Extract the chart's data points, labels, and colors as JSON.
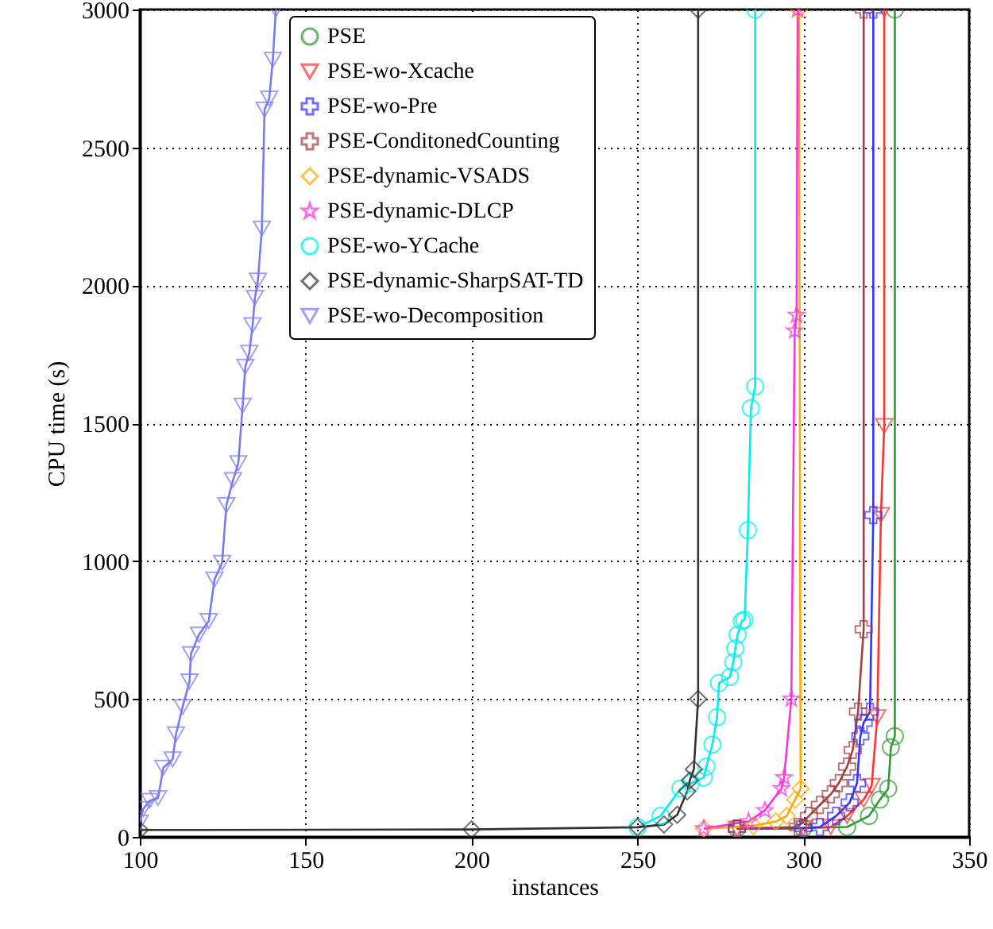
{
  "chart_data": {
    "type": "line",
    "xlabel": "instances",
    "ylabel": "CPU time (s)",
    "xlim": [
      100,
      350
    ],
    "xticks": [
      100,
      150,
      200,
      250,
      300,
      350
    ],
    "ylim": [
      0,
      3000
    ],
    "yticks": [
      0,
      500,
      1000,
      1500,
      2000,
      2500,
      3000
    ],
    "grid": true,
    "legend": "top",
    "line_style": "solid",
    "series": [
      {
        "name": "PSE",
        "color": "#339933",
        "marker": "circle",
        "x": [
          280,
          300,
          313.2,
          319.8,
          323.1,
          325.6,
          326.4,
          327.6,
          327.6
        ],
        "values": [
          30,
          32,
          36,
          76,
          135,
          175,
          325,
          365,
          3000
        ]
      },
      {
        "name": "PSE-wo-Xcache",
        "color": "#ff3333",
        "marker": "triangle",
        "x": [
          280,
          300,
          308.3,
          313.2,
          318.2,
          320.6,
          322.3,
          323.4,
          324.4,
          324.4
        ],
        "values": [
          30,
          32,
          36,
          76,
          135,
          185,
          434,
          1167,
          1490,
          3000
        ]
      },
      {
        "name": "PSE-wo-Pre",
        "color": "#3333ff",
        "marker": "cross",
        "x": [
          280,
          300,
          305,
          309.9,
          314,
          316.2,
          317.2,
          318.2,
          320.1,
          321.1,
          321.1
        ],
        "values": [
          30,
          32,
          36,
          76,
          125,
          195,
          365,
          414,
          454,
          1167,
          3000
        ]
      },
      {
        "name": "PSE-ConditonedCounting",
        "color": "#a04040",
        "marker": "cross",
        "x": [
          280,
          298.3,
          301.7,
          305,
          308.3,
          310.7,
          313.2,
          314.9,
          316.5,
          318.2,
          318.2
        ],
        "values": [
          30,
          36,
          76,
          116,
          155,
          195,
          255,
          315,
          454,
          753,
          3000
        ]
      },
      {
        "name": "PSE-dynamic-VSADS",
        "color": "#ffaa00",
        "marker": "diamond",
        "x": [
          270,
          285,
          291.7,
          295,
          297.5,
          299.2,
          298.7
        ],
        "values": [
          30,
          40,
          56,
          76,
          135,
          175,
          3000
        ]
      },
      {
        "name": "PSE-dynamic-DLCP",
        "color": "#ff33dd",
        "marker": "star",
        "x": [
          270,
          283.5,
          288.4,
          293.4,
          294.2,
          296.4,
          297.4,
          298,
          298.3
        ],
        "values": [
          30,
          56,
          96,
          175,
          215,
          500,
          1835,
          1892,
          3000
        ]
      },
      {
        "name": "PSE-wo-YCache",
        "color": "#00eeee",
        "marker": "circle",
        "x": [
          250,
          257,
          263,
          266.2,
          270,
          270.8,
          272.6,
          274,
          274.6,
          277.9,
          278.9,
          279.5,
          280.2,
          281.5,
          282.3,
          283.3,
          284.2,
          285.5,
          285.5
        ],
        "values": [
          35,
          76,
          175,
          195,
          215,
          255,
          335,
          434,
          558,
          580,
          633,
          683,
          733,
          783,
          787,
          1112,
          1554,
          1633,
          3000
        ]
      },
      {
        "name": "PSE-dynamic-SharpSAT-TD",
        "color": "#333333",
        "marker": "diamond",
        "x": [
          100,
          200,
          250,
          258,
          262,
          265,
          265.8,
          267,
          268.3,
          268.3
        ],
        "values": [
          25,
          27,
          35,
          45,
          80,
          165,
          205,
          245,
          500,
          3000
        ]
      },
      {
        "name": "PSE-wo-Decomposition",
        "color": "#7b7bf0",
        "marker": "triangle",
        "x": [
          100,
          101,
          103,
          105.5,
          107.1,
          109.9,
          110.9,
          112.9,
          115,
          115.4,
          117.8,
          120.8,
          122.5,
          124.8,
          126.1,
          128.1,
          129.7,
          131,
          131.8,
          133,
          134,
          134.7,
          135.6,
          136.8,
          137.6,
          139,
          140.1,
          141
        ],
        "values": [
          52,
          101,
          131,
          141,
          251,
          281,
          372,
          471,
          564,
          663,
          733,
          783,
          933,
          994,
          1203,
          1294,
          1355,
          1564,
          1705,
          1755,
          1855,
          1955,
          2017,
          2206,
          2637,
          2677,
          2818,
          3000
        ]
      }
    ]
  }
}
